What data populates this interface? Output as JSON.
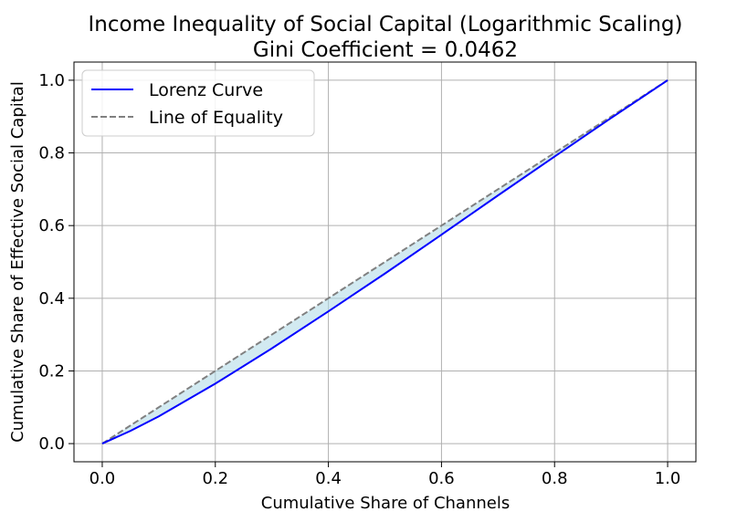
{
  "chart_data": {
    "type": "line",
    "title": "Income Inequality of Social Capital (Logarithmic Scaling)",
    "subtitle": "Gini Coefficient = 0.0462",
    "xlabel": "Cumulative Share of Channels",
    "ylabel": "Cumulative Share of Effective Social Capital",
    "xlim": [
      -0.05,
      1.05
    ],
    "ylim": [
      -0.05,
      1.05
    ],
    "x_ticks": [
      "0.0",
      "0.2",
      "0.4",
      "0.6",
      "0.8",
      "1.0"
    ],
    "y_ticks": [
      "0.0",
      "0.2",
      "0.4",
      "0.6",
      "0.8",
      "1.0"
    ],
    "grid": true,
    "legend_position": "top-left",
    "series": [
      {
        "name": "Lorenz Curve",
        "color": "#0000ff",
        "style": "solid",
        "x": [
          0.0,
          0.05,
          0.1,
          0.2,
          0.3,
          0.4,
          0.5,
          0.6,
          0.7,
          0.8,
          0.9,
          1.0
        ],
        "y": [
          0.0,
          0.035,
          0.075,
          0.165,
          0.262,
          0.364,
          0.468,
          0.575,
          0.683,
          0.79,
          0.896,
          1.0
        ]
      },
      {
        "name": "Line of Equality",
        "color": "#808080",
        "style": "dashed",
        "x": [
          0.0,
          1.0
        ],
        "y": [
          0.0,
          1.0
        ]
      }
    ],
    "fill_color": "#add8e6"
  }
}
